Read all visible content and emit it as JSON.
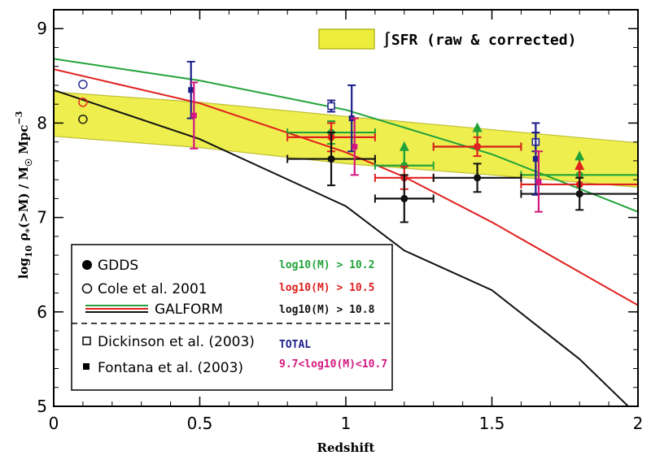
{
  "chart_data": {
    "type": "scatter",
    "xlabel": "Redshift",
    "ylabel": "log10 ρ*(>M) / M☉ Mpc⁻³",
    "xlim": [
      0,
      2
    ],
    "ylim": [
      5,
      9.2
    ],
    "x_ticks": [
      "0",
      "0.5",
      "1",
      "1.5",
      "2"
    ],
    "y_ticks": [
      "5",
      "6",
      "7",
      "8",
      "9"
    ],
    "x_tick_values": [
      0,
      0.5,
      1,
      1.5,
      2
    ],
    "y_tick_values": [
      5,
      6,
      7,
      8,
      9
    ],
    "colors": {
      "green": "#22a33a",
      "red": "#e0201e",
      "black": "#111111",
      "navy": "#1c1f8a",
      "magenta": "#d4187f",
      "band": "#eded3c",
      "band_edge": "#b8b820"
    },
    "band": {
      "label": "∫SFR (raw & corrected)",
      "x": [
        0.0,
        0.5,
        1.0,
        1.5,
        2.0
      ],
      "upper": [
        8.33,
        8.22,
        8.07,
        7.93,
        7.79
      ],
      "lower": [
        7.86,
        7.74,
        7.57,
        7.45,
        7.32
      ]
    },
    "series": [
      {
        "name": "log10(M) > 10.2",
        "color": "green",
        "model": {
          "x": [
            0.0,
            0.5,
            1.0,
            1.5,
            2.0
          ],
          "y": [
            8.68,
            8.45,
            8.14,
            7.67,
            7.06
          ]
        },
        "points": [
          {
            "x": 0.95,
            "y": 7.9,
            "xerr": 0.15,
            "yerr": 0.12
          },
          {
            "x": 1.2,
            "y": 7.55,
            "xerr": 0.1,
            "lower_limit": true
          },
          {
            "x": 1.45,
            "y": 7.75,
            "xerr": 0.15,
            "lower_limit": true
          },
          {
            "x": 1.8,
            "y": 7.45,
            "xerr": 0.2,
            "lower_limit": true
          }
        ]
      },
      {
        "name": "log10(M) > 10.5",
        "color": "red",
        "model": {
          "x": [
            0.0,
            0.5,
            1.0,
            1.2,
            1.5,
            2.0
          ],
          "y": [
            8.57,
            8.21,
            7.69,
            7.43,
            6.95,
            6.07
          ]
        },
        "points": [
          {
            "x": 0.95,
            "y": 7.85,
            "xerr": 0.15,
            "yerr": 0.15
          },
          {
            "x": 1.2,
            "y": 7.42,
            "xerr": 0.1,
            "yerr": 0.12
          },
          {
            "x": 1.45,
            "y": 7.75,
            "xerr": 0.15,
            "yerr": 0.1
          },
          {
            "x": 1.8,
            "y": 7.35,
            "xerr": 0.2,
            "lower_limit": true
          }
        ]
      },
      {
        "name": "log10(M) > 10.8",
        "color": "black",
        "model": {
          "x": [
            0.0,
            0.5,
            1.0,
            1.2,
            1.5,
            1.8,
            2.0
          ],
          "y": [
            8.35,
            7.83,
            7.12,
            6.65,
            6.23,
            5.5,
            4.9
          ]
        },
        "points": [
          {
            "x": 0.95,
            "y": 7.62,
            "xerr": 0.15,
            "yerr": 0.28
          },
          {
            "x": 1.2,
            "y": 7.2,
            "xerr": 0.1,
            "yerr": 0.25
          },
          {
            "x": 1.45,
            "y": 7.42,
            "xerr": 0.15,
            "yerr": 0.15
          },
          {
            "x": 1.8,
            "y": 7.25,
            "xerr": 0.2,
            "yerr": 0.17
          }
        ]
      }
    ],
    "cole_2001": [
      {
        "x": 0.1,
        "y": 8.41,
        "color": "navy"
      },
      {
        "x": 0.1,
        "y": 8.22,
        "color": "red"
      },
      {
        "x": 0.1,
        "y": 8.04,
        "color": "black"
      }
    ],
    "dickinson_2003": [
      {
        "x": 0.95,
        "y": 8.18,
        "yerr": 0.06,
        "color": "navy"
      },
      {
        "x": 1.65,
        "y": 7.8,
        "yerr": 0.1,
        "color": "navy"
      }
    ],
    "fontana_2003": [
      {
        "x": 0.47,
        "y": 8.35,
        "yerr": 0.3,
        "color": "navy"
      },
      {
        "x": 0.48,
        "y": 8.08,
        "yerr": 0.35,
        "color": "magenta"
      },
      {
        "x": 1.02,
        "y": 8.05,
        "yerr": 0.35,
        "color": "navy"
      },
      {
        "x": 1.03,
        "y": 7.75,
        "yerr": 0.3,
        "color": "magenta"
      },
      {
        "x": 1.65,
        "y": 7.62,
        "yerr": 0.38,
        "color": "navy"
      },
      {
        "x": 1.66,
        "y": 7.38,
        "yerr": 0.32,
        "color": "magenta"
      }
    ],
    "legend": {
      "placement": "bottom-left",
      "gdds": "GDDS",
      "cole": "Cole et al. 2001",
      "galform": "GALFORM",
      "dickinson": "Dickinson et al. (2003)",
      "fontana": "Fontana et al. (2003)",
      "thr_10_2": "log10(M) > 10.2",
      "thr_10_5": "log10(M) > 10.5",
      "thr_10_8": "log10(M) > 10.8",
      "total": "TOTAL",
      "range": "9.7<log10(M)<10.7"
    }
  }
}
